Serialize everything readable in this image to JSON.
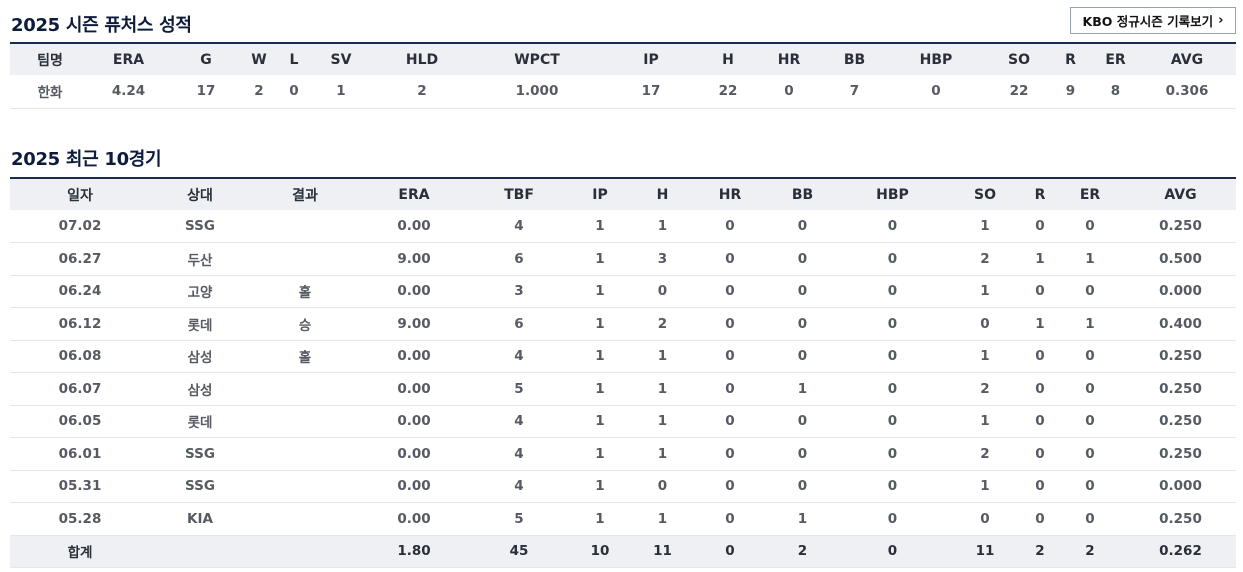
{
  "season": {
    "title": "2025 시즌 퓨처스 성적",
    "button_label": "KBO 정규시즌 기록보기",
    "headers": [
      "팀명",
      "ERA",
      "G",
      "W",
      "L",
      "SV",
      "HLD",
      "WPCT",
      "IP",
      "H",
      "HR",
      "BB",
      "HBP",
      "SO",
      "R",
      "ER",
      "AVG"
    ],
    "rows": [
      [
        "한화",
        "4.24",
        "17",
        "2",
        "0",
        "1",
        "2",
        "1.000",
        "17",
        "22",
        "0",
        "7",
        "0",
        "22",
        "9",
        "8",
        "0.306"
      ]
    ]
  },
  "recent": {
    "title": "2025 최근 10경기",
    "headers": [
      "일자",
      "상대",
      "결과",
      "ERA",
      "TBF",
      "IP",
      "H",
      "HR",
      "BB",
      "HBP",
      "SO",
      "R",
      "ER",
      "AVG"
    ],
    "rows": [
      [
        "07.02",
        "SSG",
        "",
        "0.00",
        "4",
        "1",
        "1",
        "0",
        "0",
        "0",
        "1",
        "0",
        "0",
        "0.250"
      ],
      [
        "06.27",
        "두산",
        "",
        "9.00",
        "6",
        "1",
        "3",
        "0",
        "0",
        "0",
        "2",
        "1",
        "1",
        "0.500"
      ],
      [
        "06.24",
        "고양",
        "홀",
        "0.00",
        "3",
        "1",
        "0",
        "0",
        "0",
        "0",
        "1",
        "0",
        "0",
        "0.000"
      ],
      [
        "06.12",
        "롯데",
        "승",
        "9.00",
        "6",
        "1",
        "2",
        "0",
        "0",
        "0",
        "0",
        "1",
        "1",
        "0.400"
      ],
      [
        "06.08",
        "삼성",
        "홀",
        "0.00",
        "4",
        "1",
        "1",
        "0",
        "0",
        "0",
        "1",
        "0",
        "0",
        "0.250"
      ],
      [
        "06.07",
        "삼성",
        "",
        "0.00",
        "5",
        "1",
        "1",
        "0",
        "1",
        "0",
        "2",
        "0",
        "0",
        "0.250"
      ],
      [
        "06.05",
        "롯데",
        "",
        "0.00",
        "4",
        "1",
        "1",
        "0",
        "0",
        "0",
        "1",
        "0",
        "0",
        "0.250"
      ],
      [
        "06.01",
        "SSG",
        "",
        "0.00",
        "4",
        "1",
        "1",
        "0",
        "0",
        "0",
        "2",
        "0",
        "0",
        "0.250"
      ],
      [
        "05.31",
        "SSG",
        "",
        "0.00",
        "4",
        "1",
        "0",
        "0",
        "0",
        "0",
        "1",
        "0",
        "0",
        "0.000"
      ],
      [
        "05.28",
        "KIA",
        "",
        "0.00",
        "5",
        "1",
        "1",
        "0",
        "1",
        "0",
        "0",
        "0",
        "0",
        "0.250"
      ]
    ],
    "total": {
      "label": "합계",
      "values": [
        "1.80",
        "45",
        "10",
        "11",
        "0",
        "2",
        "0",
        "11",
        "2",
        "2",
        "0.262"
      ]
    }
  }
}
